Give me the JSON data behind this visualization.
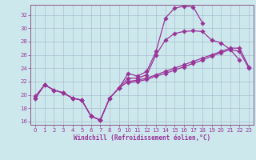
{
  "xlabel": "Windchill (Refroidissement éolien,°C)",
  "bg_color": "#cce8ec",
  "grid_color": "#aabbd0",
  "line_color": "#993399",
  "xlim": [
    -0.5,
    23.5
  ],
  "ylim": [
    15.5,
    33.5
  ],
  "yticks": [
    16,
    18,
    20,
    22,
    24,
    26,
    28,
    30,
    32
  ],
  "xticks": [
    0,
    1,
    2,
    3,
    4,
    5,
    6,
    7,
    8,
    9,
    10,
    11,
    12,
    13,
    14,
    15,
    16,
    17,
    18,
    19,
    20,
    21,
    22,
    23
  ],
  "curve_a_x": [
    0,
    1,
    2,
    3,
    4,
    5,
    6,
    7,
    8,
    9,
    10,
    11,
    12,
    13,
    14,
    15,
    16,
    17,
    18
  ],
  "curve_a_y": [
    19.5,
    21.5,
    20.7,
    20.3,
    19.5,
    19.2,
    16.8,
    16.2,
    19.5,
    21.0,
    23.2,
    22.8,
    23.5,
    26.5,
    31.5,
    33.0,
    33.3,
    33.2,
    30.8
  ],
  "curve_b_x": [
    0,
    1,
    2,
    3,
    4,
    5,
    6,
    7,
    8,
    9,
    10,
    11,
    12,
    13,
    14,
    15,
    16,
    17,
    18,
    19,
    20,
    21,
    22
  ],
  "curve_b_y": [
    19.5,
    21.5,
    20.7,
    20.3,
    19.5,
    19.2,
    16.8,
    16.2,
    19.5,
    21.0,
    22.5,
    22.5,
    23.0,
    26.0,
    28.2,
    29.2,
    29.5,
    29.6,
    29.5,
    28.2,
    27.8,
    26.8,
    25.2
  ],
  "curve_c_x": [
    0,
    1,
    2,
    3,
    4,
    5,
    6,
    7,
    8,
    9,
    10,
    11,
    12,
    13,
    14,
    15,
    16,
    17,
    18,
    19,
    20,
    21,
    22,
    23
  ],
  "curve_c_y": [
    19.8,
    21.5,
    20.7,
    20.3,
    19.5,
    19.2,
    16.8,
    16.2,
    19.5,
    21.0,
    22.0,
    22.2,
    22.5,
    23.0,
    23.5,
    24.0,
    24.5,
    25.0,
    25.5,
    26.0,
    26.5,
    27.0,
    27.0,
    24.2
  ],
  "curve_d_x": [
    10,
    11,
    12,
    13,
    14,
    15,
    16,
    17,
    18,
    19,
    20,
    21,
    22,
    23
  ],
  "curve_d_y": [
    21.8,
    22.0,
    22.3,
    22.8,
    23.2,
    23.7,
    24.2,
    24.7,
    25.2,
    25.8,
    26.3,
    26.8,
    26.5,
    24.0
  ]
}
